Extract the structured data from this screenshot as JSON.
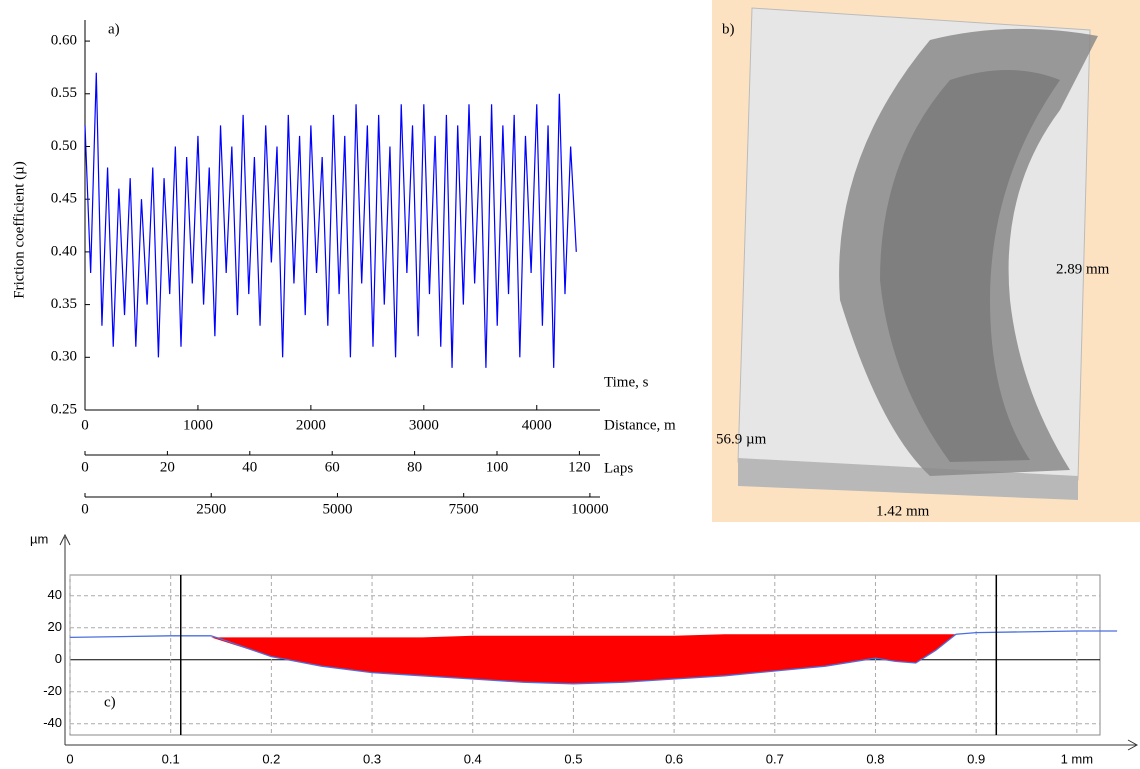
{
  "chart_data": [
    {
      "type": "line",
      "panel_label": "a)",
      "ylabel": "Friction coefficient (µ)",
      "x_labels": [
        "Time, s",
        "Distance, m"
      ],
      "x": [
        0,
        50,
        100,
        150,
        200,
        250,
        300,
        350,
        400,
        450,
        500,
        550,
        600,
        650,
        700,
        750,
        800,
        850,
        900,
        950,
        1000,
        1050,
        1100,
        1150,
        1200,
        1250,
        1300,
        1350,
        1400,
        1450,
        1500,
        1550,
        1600,
        1650,
        1700,
        1750,
        1800,
        1850,
        1900,
        1950,
        2000,
        2050,
        2100,
        2150,
        2200,
        2250,
        2300,
        2350,
        2400,
        2450,
        2500,
        2550,
        2600,
        2650,
        2700,
        2750,
        2800,
        2850,
        2900,
        2950,
        3000,
        3050,
        3100,
        3150,
        3200,
        3250,
        3300,
        3350,
        3400,
        3450,
        3500,
        3550,
        3600,
        3650,
        3700,
        3750,
        3800,
        3850,
        3900,
        3950,
        4000,
        4050,
        4100,
        4150,
        4200,
        4250,
        4300,
        4350
      ],
      "series": [
        {
          "color": "#0000ff",
          "values": [
            0.52,
            0.38,
            0.57,
            0.33,
            0.48,
            0.31,
            0.46,
            0.34,
            0.47,
            0.31,
            0.45,
            0.35,
            0.48,
            0.3,
            0.47,
            0.36,
            0.5,
            0.31,
            0.49,
            0.37,
            0.51,
            0.35,
            0.48,
            0.32,
            0.52,
            0.38,
            0.5,
            0.34,
            0.53,
            0.36,
            0.49,
            0.33,
            0.52,
            0.39,
            0.5,
            0.3,
            0.53,
            0.37,
            0.51,
            0.34,
            0.52,
            0.38,
            0.49,
            0.33,
            0.53,
            0.36,
            0.51,
            0.3,
            0.54,
            0.37,
            0.52,
            0.31,
            0.53,
            0.35,
            0.5,
            0.3,
            0.54,
            0.38,
            0.52,
            0.32,
            0.54,
            0.36,
            0.51,
            0.31,
            0.53,
            0.29,
            0.52,
            0.35,
            0.54,
            0.37,
            0.51,
            0.29,
            0.54,
            0.33,
            0.52,
            0.36,
            0.53,
            0.3,
            0.51,
            0.38,
            0.54,
            0.33,
            0.52,
            0.29,
            0.55,
            0.36,
            0.5,
            0.4
          ]
        }
      ],
      "xlim": [
        0,
        4560
      ],
      "xticks": [
        0,
        1000,
        2000,
        3000,
        4000
      ],
      "ylim": [
        0.25,
        0.62
      ],
      "yticks": [
        0.25,
        {
          "value": 0.3,
          "label": "0.30"
        },
        0.35,
        {
          "value": 0.4,
          "label": "0.40"
        },
        0.45,
        {
          "value": 0.5,
          "label": "0.50"
        },
        0.55,
        {
          "value": 0.6,
          "label": "0.60"
        }
      ],
      "extra_x_axes": [
        {
          "label": "Laps",
          "xlim": [
            0,
            125
          ],
          "xticks": [
            0,
            20,
            40,
            60,
            80,
            100,
            120
          ]
        },
        {
          "xlim": [
            0,
            10200
          ],
          "xticks": [
            0,
            2500,
            5000,
            7500,
            10000
          ]
        }
      ]
    },
    {
      "type": "area_profile",
      "panel_label": "c)",
      "ylabel": "µm",
      "x": [
        0,
        0.1,
        0.14,
        0.15,
        0.2,
        0.25,
        0.3,
        0.35,
        0.4,
        0.45,
        0.5,
        0.55,
        0.6,
        0.65,
        0.7,
        0.75,
        0.8,
        0.82,
        0.84,
        0.86,
        0.88,
        0.9,
        1.0,
        1.04
      ],
      "series": [
        {
          "color": "#4a6fe0",
          "values": [
            14,
            15,
            15,
            13,
            2,
            -4,
            -8,
            -10,
            -12,
            -14,
            -15,
            -14,
            -12,
            -10,
            -7,
            -4,
            1,
            -1,
            -2,
            6,
            16,
            17,
            18,
            18
          ]
        }
      ],
      "fill": {
        "color": "#ff0000",
        "x": [
          0.14,
          0.2,
          0.25,
          0.3,
          0.35,
          0.4,
          0.45,
          0.5,
          0.55,
          0.6,
          0.65,
          0.7,
          0.75,
          0.8,
          0.82,
          0.84,
          0.86,
          0.88
        ],
        "lower": [
          14,
          2,
          -4,
          -8,
          -10,
          -12,
          -14,
          -15,
          -14,
          -12,
          -10,
          -7,
          -4,
          1,
          -1,
          -2,
          6,
          16
        ],
        "upper": [
          14,
          14,
          14,
          14,
          14,
          15,
          15,
          15,
          15,
          15,
          16,
          16,
          16,
          16,
          16,
          16,
          16,
          16
        ]
      },
      "cursors": [
        0.11,
        0.92
      ],
      "xlim": [
        0,
        1.023
      ],
      "xticks": [
        0,
        0.1,
        0.2,
        0.3,
        0.4,
        0.5,
        0.6,
        0.7,
        0.8,
        0.9,
        {
          "value": 1,
          "label": "1 mm"
        }
      ],
      "ylim": [
        -47,
        53
      ],
      "yticks": [
        -40,
        -20,
        0,
        20,
        40
      ],
      "grid": true
    }
  ],
  "image_b": {
    "panel_label": "b)",
    "width_label": "2.89 mm",
    "height_label": "56.9 µm",
    "length_label": "1.42 mm"
  }
}
